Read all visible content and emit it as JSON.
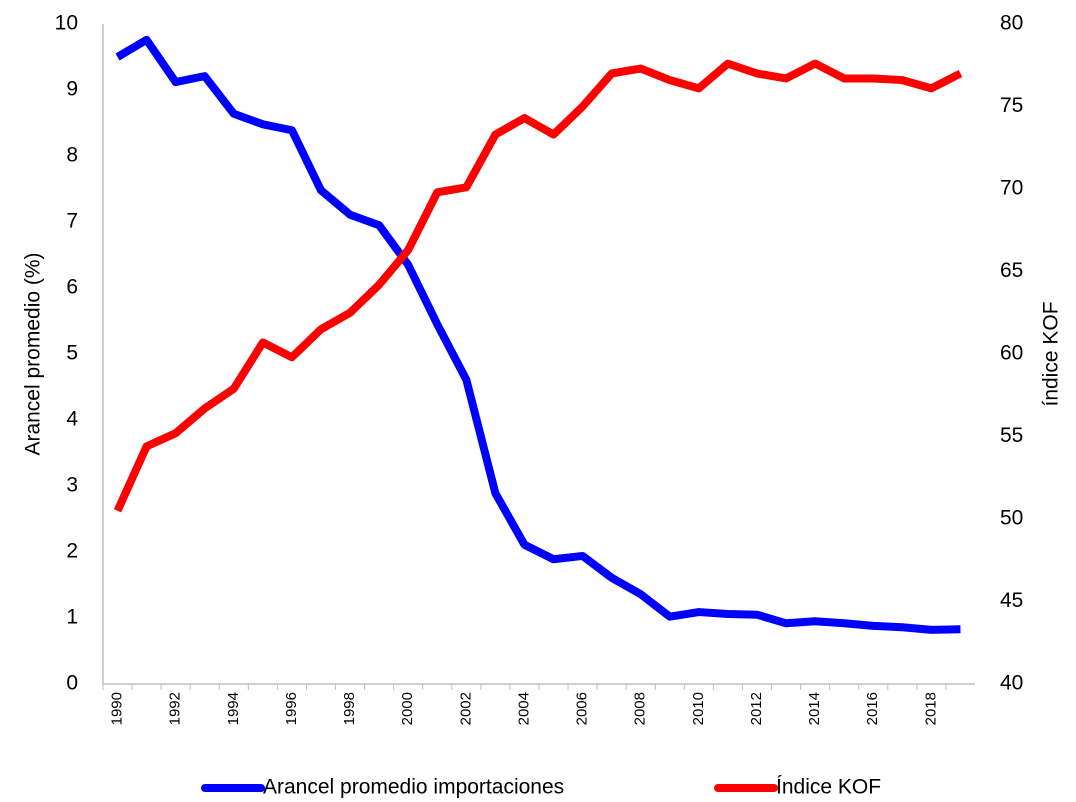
{
  "chart_data": {
    "type": "line",
    "categories": [
      "1990",
      null,
      "1992",
      null,
      "1994",
      null,
      "1996",
      null,
      "1998",
      null,
      "2000",
      null,
      "2002",
      null,
      "2004",
      null,
      "2006",
      null,
      "2008",
      null,
      "2010",
      null,
      "2012",
      null,
      "2014",
      null,
      "2016",
      null,
      "2018",
      null
    ],
    "y_label": "Arancel promedio (%)",
    "y2_label": "índice KOF",
    "ylim": [
      0,
      10
    ],
    "yticks": [
      0,
      1,
      2,
      3,
      4,
      5,
      6,
      7,
      8,
      9,
      10
    ],
    "y2lim": [
      40,
      80
    ],
    "y2ticks": [
      40,
      45,
      50,
      55,
      60,
      65,
      70,
      75,
      80
    ],
    "grid": false,
    "legend": "bottom",
    "series": [
      {
        "name": "Arancel promedio importaciones",
        "color": "#0000ff",
        "values": [
          9.5,
          9.76,
          9.12,
          9.21,
          8.64,
          8.48,
          8.39,
          7.48,
          7.11,
          6.95,
          6.35,
          5.45,
          4.61,
          2.89,
          2.11,
          1.89,
          1.94,
          1.61,
          1.36,
          1.02,
          1.09,
          1.06,
          1.05,
          0.92,
          0.95,
          0.92,
          0.88,
          0.86,
          0.82,
          0.83
        ]
      },
      {
        "name": "Índice KOF",
        "color": "#ff0000",
        "axis": "y2",
        "values": [
          50.5,
          54.4,
          55.2,
          56.7,
          57.9,
          60.7,
          59.8,
          61.5,
          62.5,
          64.2,
          66.3,
          69.8,
          70.1,
          73.3,
          74.3,
          73.3,
          75.0,
          77.0,
          77.3,
          76.6,
          76.1,
          77.6,
          77.0,
          76.7,
          77.6,
          76.7,
          76.7,
          76.6,
          76.1,
          77.0
        ]
      }
    ]
  }
}
